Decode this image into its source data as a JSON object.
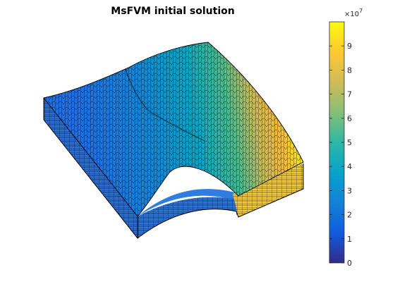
{
  "figure": {
    "title": "MsFVM initial solution"
  },
  "colorbar": {
    "exponent_base": "×10",
    "exponent_power": "7",
    "ticks": [
      {
        "value": 0,
        "label": "0"
      },
      {
        "value": 1,
        "label": "1"
      },
      {
        "value": 2,
        "label": "2"
      },
      {
        "value": 3,
        "label": "3"
      },
      {
        "value": 4,
        "label": "4"
      },
      {
        "value": 5,
        "label": "5"
      },
      {
        "value": 6,
        "label": "6"
      },
      {
        "value": 7,
        "label": "7"
      },
      {
        "value": 8,
        "label": "8"
      },
      {
        "value": 9,
        "label": "9"
      }
    ],
    "range": [
      0,
      10
    ],
    "colormap": "parula",
    "colormap_stops": [
      "#352a87",
      "#0f5cdd",
      "#1481d6",
      "#06a4ca",
      "#2eb7a4",
      "#87bf77",
      "#d1bb59",
      "#fec832",
      "#f9fb0e"
    ]
  },
  "chart_data": {
    "type": "heatmap",
    "title": "MsFVM initial solution",
    "colorbar_range": [
      0,
      100000000
    ],
    "colorbar_scale_exponent": 7,
    "surface_value_range_approx": [
      20000000,
      100000000
    ],
    "low_region": "front-left (about 2e7 - 3e7)",
    "high_region": "back-right (about 8e7 - 1e8)"
  }
}
